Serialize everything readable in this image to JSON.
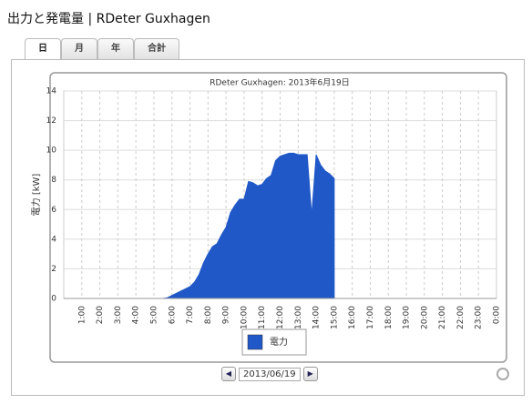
{
  "header": {
    "title": "出力と発電量 | RDeter Guxhagen"
  },
  "tabs": [
    "日",
    "月",
    "年",
    "合計"
  ],
  "date_nav": {
    "date": "2013/06/19"
  },
  "chart_data": {
    "type": "area",
    "title": "RDeter Guxhagen: 2013年6月19日",
    "y_label": "電力 [kW]",
    "series": [
      {
        "name": "電力",
        "color": "#2058c8",
        "x": [
          0,
          5.5,
          5.75,
          6,
          6.25,
          6.5,
          6.75,
          7,
          7.25,
          7.5,
          7.75,
          8,
          8.25,
          8.5,
          8.75,
          9,
          9.25,
          9.5,
          9.75,
          10,
          10.25,
          10.5,
          10.75,
          11,
          11.25,
          11.5,
          11.75,
          12,
          12.25,
          12.5,
          12.75,
          13,
          13.25,
          13.5,
          13.75,
          14,
          14.25,
          14.5,
          14.75,
          15
        ],
        "values": [
          0,
          0,
          0.05,
          0.2,
          0.35,
          0.5,
          0.65,
          0.8,
          1.1,
          1.6,
          2.4,
          3.0,
          3.5,
          3.7,
          4.3,
          4.8,
          5.8,
          6.3,
          6.7,
          6.7,
          7.9,
          7.8,
          7.6,
          7.7,
          8.1,
          8.3,
          9.3,
          9.6,
          9.7,
          9.8,
          9.8,
          9.7,
          9.7,
          9.7,
          5.6,
          9.7,
          9.0,
          8.6,
          8.4,
          8.1
        ]
      }
    ],
    "xlim": [
      0,
      24
    ],
    "xticks": [
      {
        "value": 1,
        "label": "1:00"
      },
      {
        "value": 2,
        "label": "2:00"
      },
      {
        "value": 3,
        "label": "3:00"
      },
      {
        "value": 4,
        "label": "4:00"
      },
      {
        "value": 5,
        "label": "5:00"
      },
      {
        "value": 6,
        "label": "6:00"
      },
      {
        "value": 7,
        "label": "7:00"
      },
      {
        "value": 8,
        "label": "8:00"
      },
      {
        "value": 9,
        "label": "9:00"
      },
      {
        "value": 10,
        "label": "10:00"
      },
      {
        "value": 11,
        "label": "11:00"
      },
      {
        "value": 12,
        "label": "12:00"
      },
      {
        "value": 13,
        "label": "13:00"
      },
      {
        "value": 14,
        "label": "14:00"
      },
      {
        "value": 15,
        "label": "15:00"
      },
      {
        "value": 16,
        "label": "16:00"
      },
      {
        "value": 17,
        "label": "17:00"
      },
      {
        "value": 18,
        "label": "18:00"
      },
      {
        "value": 19,
        "label": "19:00"
      },
      {
        "value": 20,
        "label": "20:00"
      },
      {
        "value": 21,
        "label": "21:00"
      },
      {
        "value": 22,
        "label": "22:00"
      },
      {
        "value": 23,
        "label": "23:00"
      },
      {
        "value": 24,
        "label": "0:00"
      }
    ],
    "ylim": [
      0,
      14
    ],
    "yticks": [
      0,
      2,
      4,
      6,
      8,
      10,
      12,
      14
    ],
    "grid": true
  }
}
